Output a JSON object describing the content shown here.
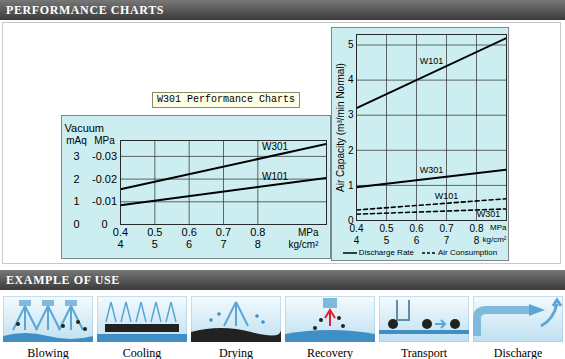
{
  "header": "PERFORMANCE CHARTS",
  "note": "W301 Performance Charts",
  "chart_data": [
    {
      "type": "line",
      "title": "Vacuum",
      "ylabel": "mAq",
      "y2label": "MPa",
      "xlabel": "MPa",
      "x2label": "kg/cm²",
      "x": [
        0.4,
        1.0
      ],
      "xlim": [
        0.4,
        1.0
      ],
      "xticks": [
        0.4,
        0.5,
        0.6,
        0.7,
        0.8
      ],
      "x2lim": [
        4,
        10
      ],
      "x2ticks": [
        4,
        5,
        6,
        7,
        8
      ],
      "ylim": [
        0,
        3.7
      ],
      "yticks": [
        0,
        1,
        2,
        3
      ],
      "y2lim": [
        0,
        -0.037
      ],
      "y2ticks": [
        0,
        -0.01,
        -0.02,
        -0.03
      ],
      "grid": true,
      "series": [
        {
          "name": "W301",
          "color": "#000000",
          "line_style": "solid",
          "values": [
            1.55,
            3.55
          ]
        },
        {
          "name": "W101",
          "color": "#000000",
          "line_style": "solid",
          "values": [
            0.85,
            2.05
          ]
        }
      ]
    },
    {
      "type": "line",
      "ylabel": "Air Capacity (m³/min Normal)",
      "xlabel": "MPa",
      "x2label": "kg/cm²",
      "x": [
        0.4,
        0.9
      ],
      "xlim": [
        0.4,
        0.9
      ],
      "xticks": [
        0.4,
        0.5,
        0.6,
        0.7,
        0.8
      ],
      "x2lim": [
        4,
        9
      ],
      "x2ticks": [
        4,
        5,
        6,
        7,
        8
      ],
      "ylim": [
        0,
        5.3
      ],
      "yticks": [
        0,
        1,
        2,
        3,
        4,
        5
      ],
      "grid": true,
      "legend": "bottom",
      "series": [
        {
          "name": "W101",
          "group": "Discharge Rate",
          "color": "#000000",
          "line_style": "solid",
          "values": [
            3.2,
            5.2
          ]
        },
        {
          "name": "W301",
          "group": "Discharge Rate",
          "color": "#000000",
          "line_style": "solid",
          "values": [
            0.95,
            1.45
          ]
        },
        {
          "name": "W101",
          "group": "Air Consumption",
          "color": "#000000",
          "line_style": "dashed",
          "values": [
            0.3,
            0.62
          ]
        },
        {
          "name": "W301",
          "group": "Air Consumption",
          "color": "#000000",
          "line_style": "dashed",
          "values": [
            0.18,
            0.33
          ]
        }
      ]
    }
  ],
  "examples": {
    "title": "EXAMPLE OF USE",
    "items": [
      "Blowing",
      "Cooling",
      "Drying",
      "Recovery",
      "Transport",
      "Discharge"
    ]
  }
}
